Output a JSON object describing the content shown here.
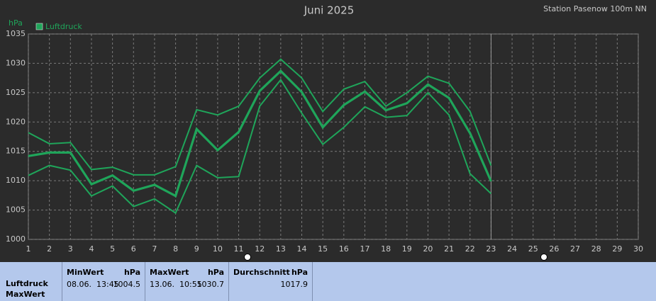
{
  "chart_data": {
    "type": "line",
    "title": "Juni 2025",
    "subtitle": "Station Pasenow 100m NN",
    "y_label": "hPa",
    "x": [
      1,
      2,
      3,
      4,
      5,
      6,
      7,
      8,
      9,
      10,
      11,
      12,
      13,
      14,
      15,
      16,
      17,
      18,
      19,
      20,
      21,
      22,
      23
    ],
    "series": [
      {
        "color": "#1fa55a",
        "width": 2,
        "values": [
          1018.2,
          1016.3,
          1016.5,
          1011.9,
          1012.3,
          1011.0,
          1011.0,
          1012.4,
          1022.1,
          1021.2,
          1022.7,
          1027.5,
          1030.7,
          1027.5,
          1021.8,
          1025.6,
          1026.9,
          1022.7,
          1025.0,
          1027.8,
          1026.6,
          1021.8,
          1012.6
        ]
      },
      {
        "name": "Luftdruck",
        "color": "#1fa55a",
        "width": 3.2,
        "values": [
          1014.2,
          1014.8,
          1014.8,
          1009.4,
          1010.9,
          1008.3,
          1009.3,
          1007.4,
          1018.8,
          1015.2,
          1018.3,
          1025.3,
          1028.7,
          1025.1,
          1019.1,
          1022.9,
          1025.2,
          1022.0,
          1023.2,
          1026.4,
          1024.1,
          1018.1,
          1009.9
        ]
      },
      {
        "color": "#1fa55a",
        "width": 2,
        "values": [
          1010.9,
          1012.6,
          1011.8,
          1007.4,
          1009.1,
          1005.6,
          1006.9,
          1004.5,
          1012.6,
          1010.5,
          1010.7,
          1022.7,
          1027.2,
          1021.5,
          1016.2,
          1019.1,
          1022.6,
          1020.8,
          1021.1,
          1025.0,
          1021.2,
          1011.2,
          1007.8
        ]
      }
    ],
    "xlim": [
      1,
      30
    ],
    "xticks": [
      1,
      2,
      3,
      4,
      5,
      6,
      7,
      8,
      9,
      10,
      11,
      12,
      13,
      14,
      15,
      16,
      17,
      18,
      19,
      20,
      21,
      22,
      23,
      24,
      25,
      26,
      27,
      28,
      29,
      30
    ],
    "ylim": [
      1000,
      1035
    ],
    "yticks": [
      1000,
      1005,
      1010,
      1015,
      1020,
      1025,
      1030,
      1035
    ],
    "grid": true,
    "current_x": 23,
    "legend": "top-left"
  },
  "stats_panel": {
    "row_labels": [
      "Luftdruck",
      "MaxWert"
    ],
    "columns": [
      {
        "title": "MinWert",
        "unit": "hPa",
        "date": "08.06.",
        "time": "13:45",
        "value": "1004.5"
      },
      {
        "title": "MaxWert",
        "unit": "hPa",
        "date": "13.06.",
        "time": "10:55",
        "value": "1030.7"
      },
      {
        "title": "Durchschnitt",
        "unit": "hPa",
        "value": "1017.9"
      }
    ]
  }
}
